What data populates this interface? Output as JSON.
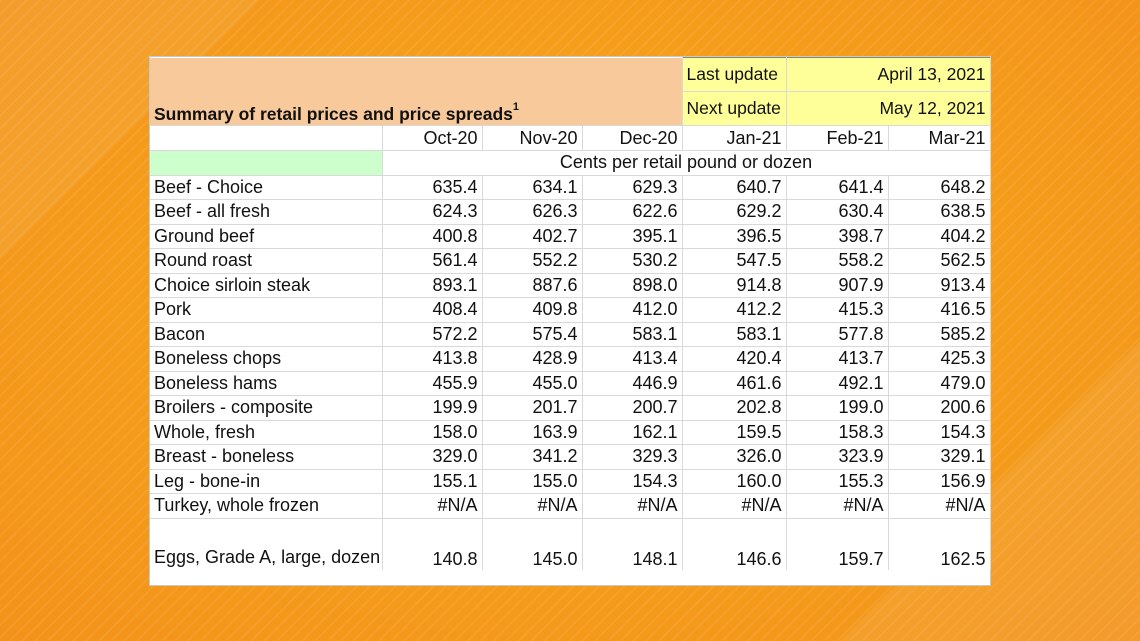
{
  "title": "Summary of retail prices and price spreads",
  "title_footnote": "1",
  "last_update_label": "Last update",
  "last_update_value": "April 13, 2021",
  "next_update_label": "Next update",
  "next_update_value": "May 12, 2021",
  "columns": [
    "Oct-20",
    "Nov-20",
    "Dec-20",
    "Jan-21",
    "Feb-21",
    "Mar-21"
  ],
  "units": "Cents per retail pound or dozen",
  "colors": {
    "title_bg": "#f8c99b",
    "update_bg": "#ffff99",
    "green_cell": "#ccffcc",
    "background": "#f5a623"
  },
  "rows": [
    {
      "label": "Beef - Choice",
      "values": [
        "635.4",
        "634.1",
        "629.3",
        "640.7",
        "641.4",
        "648.2"
      ]
    },
    {
      "label": "Beef - all fresh",
      "values": [
        "624.3",
        "626.3",
        "622.6",
        "629.2",
        "630.4",
        "638.5"
      ]
    },
    {
      "label": "Ground beef",
      "values": [
        "400.8",
        "402.7",
        "395.1",
        "396.5",
        "398.7",
        "404.2"
      ]
    },
    {
      "label": "Round roast",
      "values": [
        "561.4",
        "552.2",
        "530.2",
        "547.5",
        "558.2",
        "562.5"
      ]
    },
    {
      "label": "Choice sirloin steak",
      "values": [
        "893.1",
        "887.6",
        "898.0",
        "914.8",
        "907.9",
        "913.4"
      ]
    },
    {
      "label": "Pork",
      "values": [
        "408.4",
        "409.8",
        "412.0",
        "412.2",
        "415.3",
        "416.5"
      ]
    },
    {
      "label": "Bacon",
      "values": [
        "572.2",
        "575.4",
        "583.1",
        "583.1",
        "577.8",
        "585.2"
      ]
    },
    {
      "label": "Boneless chops",
      "values": [
        "413.8",
        "428.9",
        "413.4",
        "420.4",
        "413.7",
        "425.3"
      ]
    },
    {
      "label": "Boneless hams",
      "values": [
        "455.9",
        "455.0",
        "446.9",
        "461.6",
        "492.1",
        "479.0"
      ]
    },
    {
      "label": "Broilers - composite",
      "values": [
        "199.9",
        "201.7",
        "200.7",
        "202.8",
        "199.0",
        "200.6"
      ]
    },
    {
      "label": "Whole, fresh",
      "values": [
        "158.0",
        "163.9",
        "162.1",
        "159.5",
        "158.3",
        "154.3"
      ]
    },
    {
      "label": "Breast - boneless",
      "values": [
        "329.0",
        "341.2",
        "329.3",
        "326.0",
        "323.9",
        "329.1"
      ]
    },
    {
      "label": "Leg - bone-in",
      "values": [
        "155.1",
        "155.0",
        "154.3",
        "160.0",
        "155.3",
        "156.9"
      ]
    },
    {
      "label": "Turkey, whole frozen",
      "values": [
        "#N/A",
        "#N/A",
        "#N/A",
        "#N/A",
        "#N/A",
        "#N/A"
      ]
    },
    {
      "label": "Eggs, Grade A, large, dozen",
      "values": [
        "140.8",
        "145.0",
        "148.1",
        "146.6",
        "159.7",
        "162.5"
      ]
    }
  ]
}
